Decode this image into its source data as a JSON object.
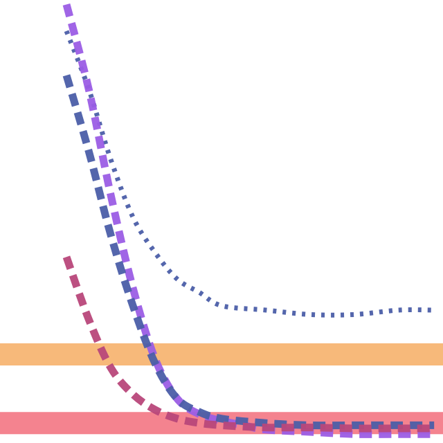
{
  "chart_data": {
    "type": "line",
    "title": "",
    "xlabel": "",
    "ylabel": "",
    "xlim": [
      0,
      1
    ],
    "ylim": [
      0,
      1
    ],
    "grid": false,
    "legend": "none",
    "reference_lines": [
      {
        "y": 0.2,
        "color": "#f7b97a"
      },
      {
        "y": 0.045,
        "color": "#f4838f"
      }
    ],
    "series": [
      {
        "color": "#4b5ea8",
        "dash": "dotted",
        "points": [
          [
            0.15,
            0.93
          ],
          [
            0.2,
            0.8
          ],
          [
            0.25,
            0.64
          ],
          [
            0.3,
            0.51
          ],
          [
            0.35,
            0.43
          ],
          [
            0.4,
            0.37
          ],
          [
            0.45,
            0.34
          ],
          [
            0.5,
            0.31
          ],
          [
            0.6,
            0.3
          ],
          [
            0.7,
            0.29
          ],
          [
            0.8,
            0.29
          ],
          [
            0.9,
            0.3
          ],
          [
            0.98,
            0.3
          ]
        ]
      },
      {
        "color": "#9b5de5",
        "dash": "dashed",
        "points": [
          [
            0.15,
            0.99
          ],
          [
            0.2,
            0.8
          ],
          [
            0.25,
            0.56
          ],
          [
            0.3,
            0.35
          ],
          [
            0.35,
            0.19
          ],
          [
            0.4,
            0.1
          ],
          [
            0.45,
            0.065
          ],
          [
            0.5,
            0.05
          ],
          [
            0.55,
            0.04
          ],
          [
            0.6,
            0.03
          ],
          [
            0.7,
            0.025
          ],
          [
            0.8,
            0.02
          ],
          [
            0.9,
            0.02
          ],
          [
            0.98,
            0.02
          ]
        ]
      },
      {
        "color": "#4b5ea8",
        "dash": "dashed",
        "points": [
          [
            0.15,
            0.83
          ],
          [
            0.2,
            0.66
          ],
          [
            0.25,
            0.47
          ],
          [
            0.3,
            0.31
          ],
          [
            0.35,
            0.18
          ],
          [
            0.4,
            0.1
          ],
          [
            0.45,
            0.07
          ],
          [
            0.5,
            0.055
          ],
          [
            0.6,
            0.045
          ],
          [
            0.7,
            0.04
          ],
          [
            0.8,
            0.04
          ],
          [
            0.9,
            0.04
          ],
          [
            0.98,
            0.04
          ]
        ]
      },
      {
        "color": "#b8477a",
        "dash": "dashed",
        "points": [
          [
            0.15,
            0.42
          ],
          [
            0.2,
            0.28
          ],
          [
            0.25,
            0.17
          ],
          [
            0.3,
            0.11
          ],
          [
            0.35,
            0.075
          ],
          [
            0.4,
            0.055
          ],
          [
            0.45,
            0.045
          ],
          [
            0.5,
            0.04
          ],
          [
            0.6,
            0.035
          ],
          [
            0.7,
            0.035
          ],
          [
            0.8,
            0.033
          ],
          [
            0.9,
            0.033
          ],
          [
            0.98,
            0.033
          ]
        ]
      }
    ]
  }
}
